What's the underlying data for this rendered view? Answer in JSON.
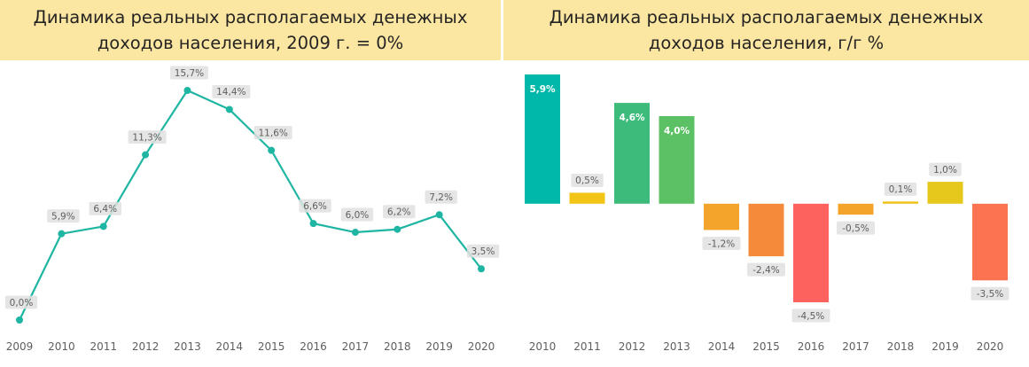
{
  "chart_data": [
    {
      "type": "line",
      "title": "Динамика реальных располагаемых денежных доходов населения, 2009 г. = 0%",
      "categories": [
        "2009",
        "2010",
        "2011",
        "2012",
        "2013",
        "2014",
        "2015",
        "2016",
        "2017",
        "2018",
        "2019",
        "2020"
      ],
      "values": [
        0.0,
        5.9,
        6.4,
        11.3,
        15.7,
        14.4,
        11.6,
        6.6,
        6.0,
        6.2,
        7.2,
        3.5
      ],
      "labels": [
        "0,0%",
        "5,9%",
        "6,4%",
        "11,3%",
        "15,7%",
        "14,4%",
        "11,6%",
        "6,6%",
        "6,0%",
        "6,2%",
        "7,2%",
        "3,5%"
      ],
      "ylim": [
        0,
        15.7
      ],
      "line_color": "#1fb5a3",
      "grid": false
    },
    {
      "type": "bar",
      "title": "Динамика реальных располагаемых денежных доходов населения, г/г %",
      "categories": [
        "2010",
        "2011",
        "2012",
        "2013",
        "2014",
        "2015",
        "2016",
        "2017",
        "2018",
        "2019",
        "2020"
      ],
      "values": [
        5.9,
        0.5,
        4.6,
        4.0,
        -1.2,
        -2.4,
        -4.5,
        -0.5,
        0.1,
        1.0,
        -3.5
      ],
      "labels": [
        "5,9%",
        "0,5%",
        "4,6%",
        "4,0%",
        "-1,2%",
        "-2,4%",
        "-4,5%",
        "-0,5%",
        "0,1%",
        "1,0%",
        "-3,5%"
      ],
      "colors": [
        "#00b8a9",
        "#f2c416",
        "#3cbb7a",
        "#5cc064",
        "#f4a42a",
        "#f58a3a",
        "#fd625e",
        "#f4a42a",
        "#eec218",
        "#e6c81c",
        "#fb7350"
      ],
      "ylim": [
        -4.5,
        5.9
      ],
      "grid": false
    }
  ]
}
